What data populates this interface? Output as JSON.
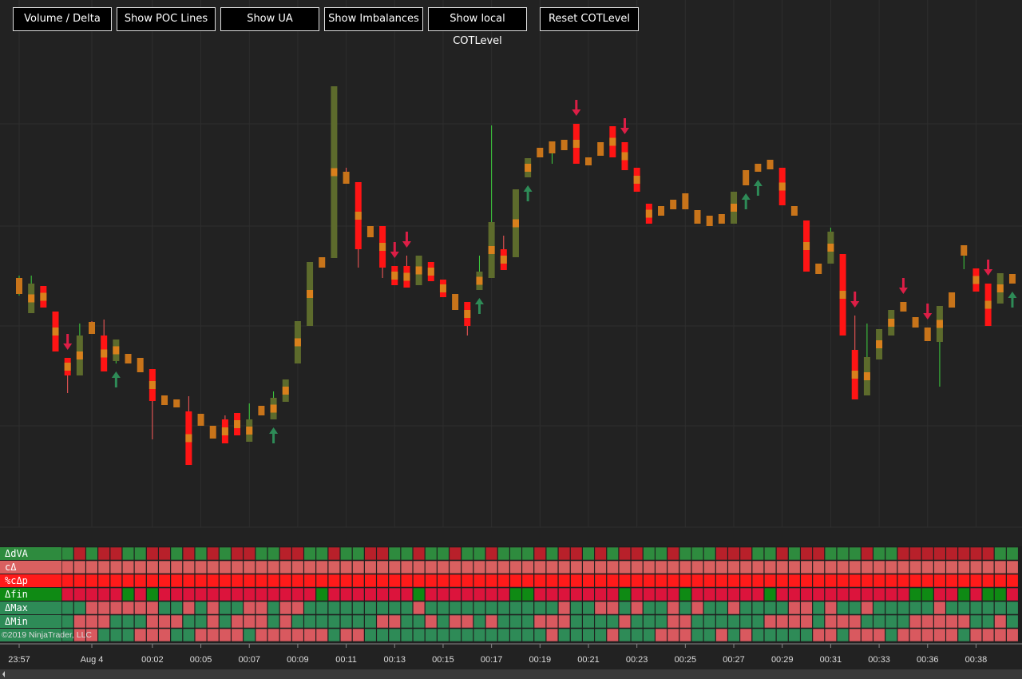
{
  "buttons": [
    "Volume / Delta",
    "Show POC Lines",
    "Show UA",
    "Show Imbalances",
    "Show local COTLevel",
    "Reset COTLevel"
  ],
  "candles": [
    [
      292,
      315,
      290,
      312
    ],
    [
      268,
      315,
      268,
      305
    ],
    [
      302,
      302,
      275,
      275
    ],
    [
      270,
      270,
      220,
      220
    ],
    [
      212,
      212,
      168,
      190
    ],
    [
      190,
      255,
      190,
      240
    ],
    [
      257,
      258,
      242,
      242
    ],
    [
      240,
      260,
      195,
      195
    ],
    [
      208,
      235,
      205,
      235
    ],
    [
      217,
      217,
      205,
      205
    ],
    [
      212,
      212,
      194,
      194
    ],
    [
      198,
      198,
      110,
      158
    ],
    [
      165,
      165,
      153,
      153
    ],
    [
      160,
      160,
      150,
      150
    ],
    [
      145,
      164,
      78,
      78
    ],
    [
      142,
      142,
      127,
      127
    ],
    [
      127,
      127,
      111,
      111
    ],
    [
      135,
      140,
      105,
      105
    ],
    [
      143,
      143,
      115,
      115
    ],
    [
      107,
      155,
      107,
      135
    ],
    [
      140,
      152,
      140,
      152
    ],
    [
      135,
      170,
      135,
      162
    ],
    [
      157,
      185,
      157,
      185
    ],
    [
      205,
      258,
      205,
      258
    ],
    [
      252,
      332,
      252,
      332
    ],
    [
      325,
      338,
      325,
      338
    ],
    [
      337,
      552,
      337,
      552
    ],
    [
      445,
      450,
      430,
      430
    ],
    [
      432,
      432,
      325,
      348
    ],
    [
      377,
      377,
      363,
      363
    ],
    [
      377,
      377,
      312,
      325
    ],
    [
      327,
      327,
      303,
      303
    ],
    [
      327,
      340,
      300,
      300
    ],
    [
      303,
      340,
      303,
      340
    ],
    [
      332,
      332,
      308,
      308
    ],
    [
      310,
      310,
      288,
      288
    ],
    [
      292,
      292,
      272,
      272
    ],
    [
      282,
      282,
      240,
      252
    ],
    [
      297,
      340,
      297,
      320
    ],
    [
      312,
      503,
      312,
      382
    ],
    [
      348,
      365,
      322,
      322
    ],
    [
      338,
      423,
      338,
      423
    ],
    [
      438,
      462,
      438,
      462
    ],
    [
      463,
      475,
      463,
      475
    ],
    [
      468,
      483,
      455,
      483
    ],
    [
      472,
      485,
      472,
      485
    ],
    [
      505,
      505,
      455,
      455
    ],
    [
      463,
      463,
      453,
      453
    ],
    [
      465,
      482,
      465,
      482
    ],
    [
      502,
      502,
      463,
      463
    ],
    [
      482,
      482,
      447,
      447
    ],
    [
      450,
      450,
      420,
      420
    ],
    [
      405,
      405,
      380,
      380
    ],
    [
      402,
      402,
      390,
      390
    ],
    [
      410,
      410,
      398,
      398
    ],
    [
      418,
      418,
      398,
      398
    ],
    [
      397,
      397,
      380,
      380
    ],
    [
      390,
      390,
      377,
      377
    ],
    [
      392,
      392,
      380,
      380
    ],
    [
      380,
      420,
      380,
      420
    ],
    [
      428,
      447,
      428,
      447
    ],
    [
      445,
      455,
      445,
      455
    ],
    [
      460,
      460,
      448,
      448
    ],
    [
      450,
      450,
      403,
      403
    ],
    [
      402,
      402,
      390,
      390
    ],
    [
      384,
      384,
      320,
      320
    ],
    [
      330,
      330,
      317,
      317
    ],
    [
      330,
      375,
      330,
      370
    ],
    [
      342,
      342,
      240,
      240
    ],
    [
      222,
      265,
      160,
      160
    ],
    [
      165,
      255,
      165,
      213
    ],
    [
      210,
      248,
      210,
      248
    ],
    [
      240,
      272,
      240,
      272
    ],
    [
      282,
      282,
      270,
      270
    ],
    [
      263,
      263,
      250,
      250
    ],
    [
      250,
      250,
      233,
      233
    ],
    [
      232,
      277,
      176,
      277
    ],
    [
      275,
      294,
      275,
      294
    ],
    [
      340,
      353,
      323,
      353
    ],
    [
      324,
      324,
      295,
      295
    ],
    [
      305,
      305,
      252,
      252
    ],
    [
      280,
      318,
      280,
      318
    ],
    [
      305,
      317,
      305,
      317
    ]
  ],
  "signals": [
    null,
    null,
    null,
    null,
    "down",
    null,
    null,
    null,
    "up",
    null,
    null,
    null,
    null,
    null,
    null,
    null,
    null,
    null,
    null,
    null,
    null,
    "up",
    null,
    null,
    null,
    null,
    null,
    null,
    null,
    null,
    null,
    "down",
    "down",
    null,
    null,
    null,
    null,
    null,
    "up",
    null,
    null,
    null,
    "up",
    null,
    null,
    null,
    "down",
    null,
    null,
    null,
    "down",
    null,
    null,
    null,
    null,
    null,
    null,
    null,
    null,
    null,
    "up",
    "up",
    null,
    null,
    null,
    null,
    null,
    null,
    null,
    "down",
    null,
    null,
    null,
    "down",
    null,
    "down",
    null,
    null,
    null,
    null,
    "down",
    null,
    "up"
  ],
  "times": [
    "23:57",
    null,
    null,
    null,
    null,
    null,
    "Aug 4",
    null,
    null,
    null,
    null,
    "00:02",
    null,
    null,
    null,
    "00:05",
    null,
    null,
    null,
    "00:07",
    null,
    null,
    null,
    "00:09",
    null,
    null,
    null,
    "00:11",
    null,
    null,
    null,
    "00:13",
    null,
    null,
    null,
    "00:15",
    null,
    null,
    null,
    "00:17",
    null,
    null,
    null,
    "00:19",
    null,
    null,
    null,
    "00:21",
    null,
    null,
    null,
    "00:23",
    null,
    null,
    null,
    "00:25",
    null,
    null,
    null,
    "00:27",
    null,
    null,
    null,
    "00:29",
    null,
    null,
    null,
    "00:31",
    null,
    null,
    null,
    "00:33",
    null,
    null,
    null,
    "00:36",
    null,
    null,
    null,
    "00:38",
    null,
    null,
    null
  ],
  "indicator_rows": [
    "ΔdVA",
    "cΔ",
    "%cΔp",
    "Δfin",
    "ΔMax",
    "ΔMin"
  ],
  "copyright": "©2019 NinjaTrader, LLC"
}
